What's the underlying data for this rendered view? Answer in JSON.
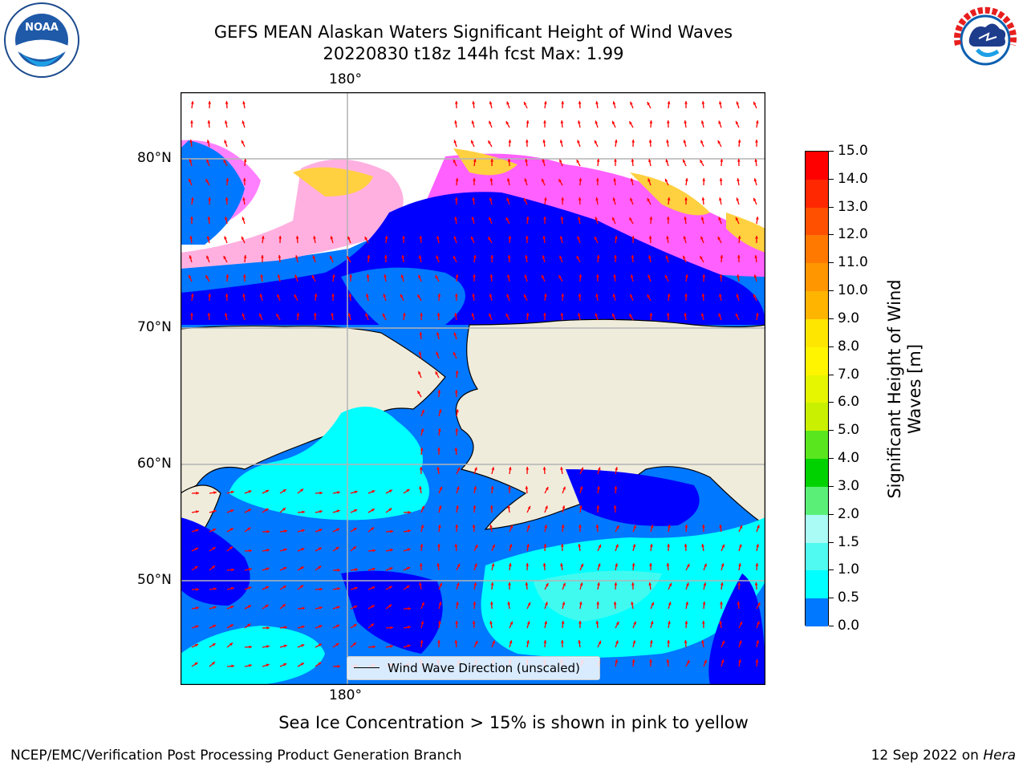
{
  "title": {
    "line1": "GEFS MEAN Alaskan Waters Significant Height of Wind Waves",
    "line2": "20220830 t18z 144h fcst   Max: 1.99"
  },
  "map": {
    "lon_label_top": "180°",
    "lon_label_bottom": "180°",
    "lat_labels": [
      "80°N",
      "70°N",
      "60°N",
      "50°N"
    ]
  },
  "colorbar": {
    "title": "Significant Height of Wind Waves [m]",
    "levels": [
      "15.0",
      "14.0",
      "13.0",
      "12.0",
      "11.0",
      "10.0",
      "9.0",
      "8.0",
      "7.0",
      "6.0",
      "5.0",
      "4.0",
      "3.0",
      "2.0",
      "1.5",
      "1.0",
      "0.5",
      "0.0"
    ],
    "colors_top_to_bottom": [
      "#ff0000",
      "#ff2800",
      "#ff5000",
      "#ff7800",
      "#ff9600",
      "#ffb400",
      "#ffe600",
      "#fff500",
      "#e6f500",
      "#c8f000",
      "#5ae61e",
      "#00d200",
      "#5af078",
      "#aafaf5",
      "#50faf0",
      "#00ffff",
      "#0078ff",
      "#0000ff"
    ]
  },
  "legend": {
    "label": "Wind Wave Direction (unscaled)"
  },
  "note": "Sea Ice Concentration > 15% is shown in pink to yellow",
  "footer": {
    "left": "NCEP/EMC/Verification Post Processing Product Generation Branch",
    "right_date": "12 Sep 2022 on",
    "right_host": "Hera"
  },
  "logos": {
    "left": {
      "icon": "noaa-logo",
      "text": "NOAA"
    },
    "right": {
      "icon": "nws-logo",
      "text": "NATIONAL WEATHER SERVICE"
    }
  }
}
